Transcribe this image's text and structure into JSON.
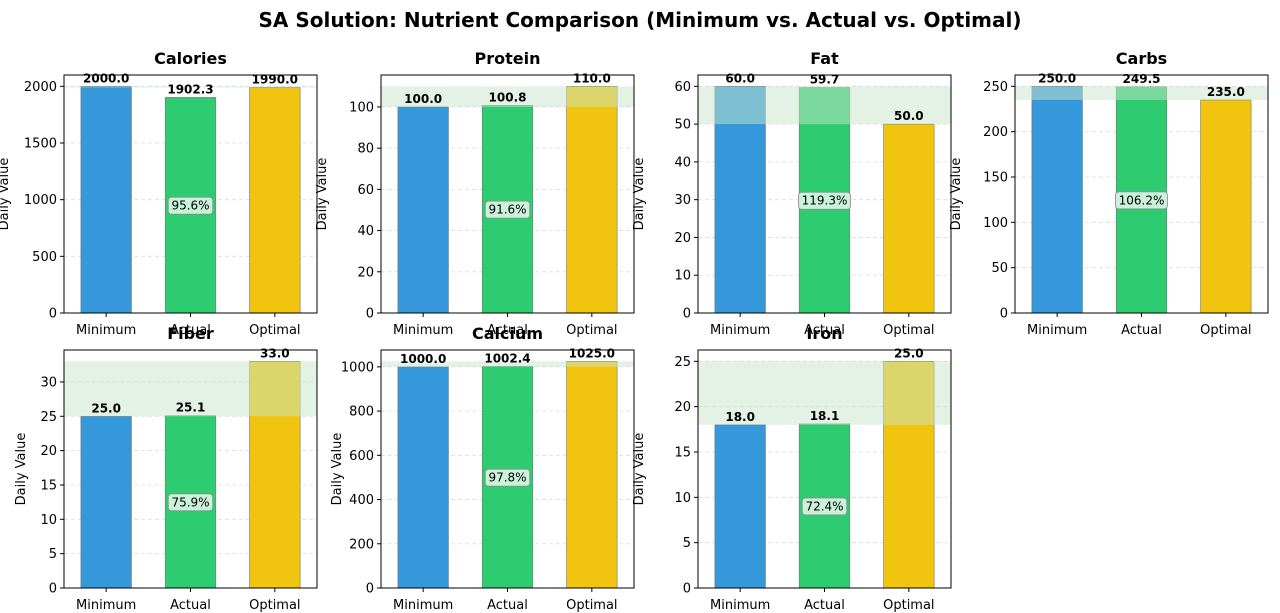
{
  "title": "SA Solution: Nutrient Comparison (Minimum vs. Actual vs. Optimal)",
  "colors": {
    "minimum": "#3498db",
    "actual": "#2ecc71",
    "optimal": "#f1c40f",
    "band": "#c8e6c9",
    "grid": "#cccccc"
  },
  "chart_data": [
    {
      "type": "bar",
      "title": "Calories",
      "ylabel": "Daily Value",
      "categories": [
        "Minimum",
        "Actual",
        "Optimal"
      ],
      "values": [
        2000.0,
        1902.3,
        1990.0
      ],
      "value_labels": [
        "2000.0",
        "1902.3",
        "1990.0"
      ],
      "pct_label": "95.6%",
      "band": [
        1990,
        2000
      ],
      "ylim": [
        0,
        2100
      ],
      "yticks": [
        0,
        500,
        1000,
        1500,
        2000
      ],
      "grid": true
    },
    {
      "type": "bar",
      "title": "Protein",
      "ylabel": "Daily Value",
      "categories": [
        "Minimum",
        "Actual",
        "Optimal"
      ],
      "values": [
        100.0,
        100.8,
        110.0
      ],
      "value_labels": [
        "100.0",
        "100.8",
        "110.0"
      ],
      "pct_label": "91.6%",
      "band": [
        100,
        110
      ],
      "ylim": [
        0,
        115.5
      ],
      "yticks": [
        0,
        20,
        40,
        60,
        80,
        100
      ],
      "grid": true
    },
    {
      "type": "bar",
      "title": "Fat",
      "ylabel": "Daily Value",
      "categories": [
        "Minimum",
        "Actual",
        "Optimal"
      ],
      "values": [
        60.0,
        59.7,
        50.0
      ],
      "value_labels": [
        "60.0",
        "59.7",
        "50.0"
      ],
      "pct_label": "119.3%",
      "band": [
        50,
        60
      ],
      "ylim": [
        0,
        63
      ],
      "yticks": [
        0,
        10,
        20,
        30,
        40,
        50,
        60
      ],
      "grid": true
    },
    {
      "type": "bar",
      "title": "Carbs",
      "ylabel": "Daily Value",
      "categories": [
        "Minimum",
        "Actual",
        "Optimal"
      ],
      "values": [
        250.0,
        249.5,
        235.0
      ],
      "value_labels": [
        "250.0",
        "249.5",
        "235.0"
      ],
      "pct_label": "106.2%",
      "band": [
        235,
        250
      ],
      "ylim": [
        0,
        262.5
      ],
      "yticks": [
        0,
        50,
        100,
        150,
        200,
        250
      ],
      "grid": true
    },
    {
      "type": "bar",
      "title": "Fiber",
      "ylabel": "Daily Value",
      "categories": [
        "Minimum",
        "Actual",
        "Optimal"
      ],
      "values": [
        25.0,
        25.1,
        33.0
      ],
      "value_labels": [
        "25.0",
        "25.1",
        "33.0"
      ],
      "pct_label": "75.9%",
      "band": [
        25,
        33
      ],
      "ylim": [
        0,
        34.65
      ],
      "yticks": [
        0,
        5,
        10,
        15,
        20,
        25,
        30
      ],
      "grid": true
    },
    {
      "type": "bar",
      "title": "Calcium",
      "ylabel": "Daily Value",
      "categories": [
        "Minimum",
        "Actual",
        "Optimal"
      ],
      "values": [
        1000.0,
        1002.4,
        1025.0
      ],
      "value_labels": [
        "1000.0",
        "1002.4",
        "1025.0"
      ],
      "pct_label": "97.8%",
      "band": [
        1000,
        1025
      ],
      "ylim": [
        0,
        1076.25
      ],
      "yticks": [
        0,
        200,
        400,
        600,
        800,
        1000
      ],
      "grid": true
    },
    {
      "type": "bar",
      "title": "Iron",
      "ylabel": "Daily Value",
      "categories": [
        "Minimum",
        "Actual",
        "Optimal"
      ],
      "values": [
        18.0,
        18.1,
        25.0
      ],
      "value_labels": [
        "18.0",
        "18.1",
        "25.0"
      ],
      "pct_label": "72.4%",
      "band": [
        18,
        25
      ],
      "ylim": [
        0,
        26.25
      ],
      "yticks": [
        0,
        5,
        10,
        15,
        20,
        25
      ],
      "grid": true
    }
  ]
}
